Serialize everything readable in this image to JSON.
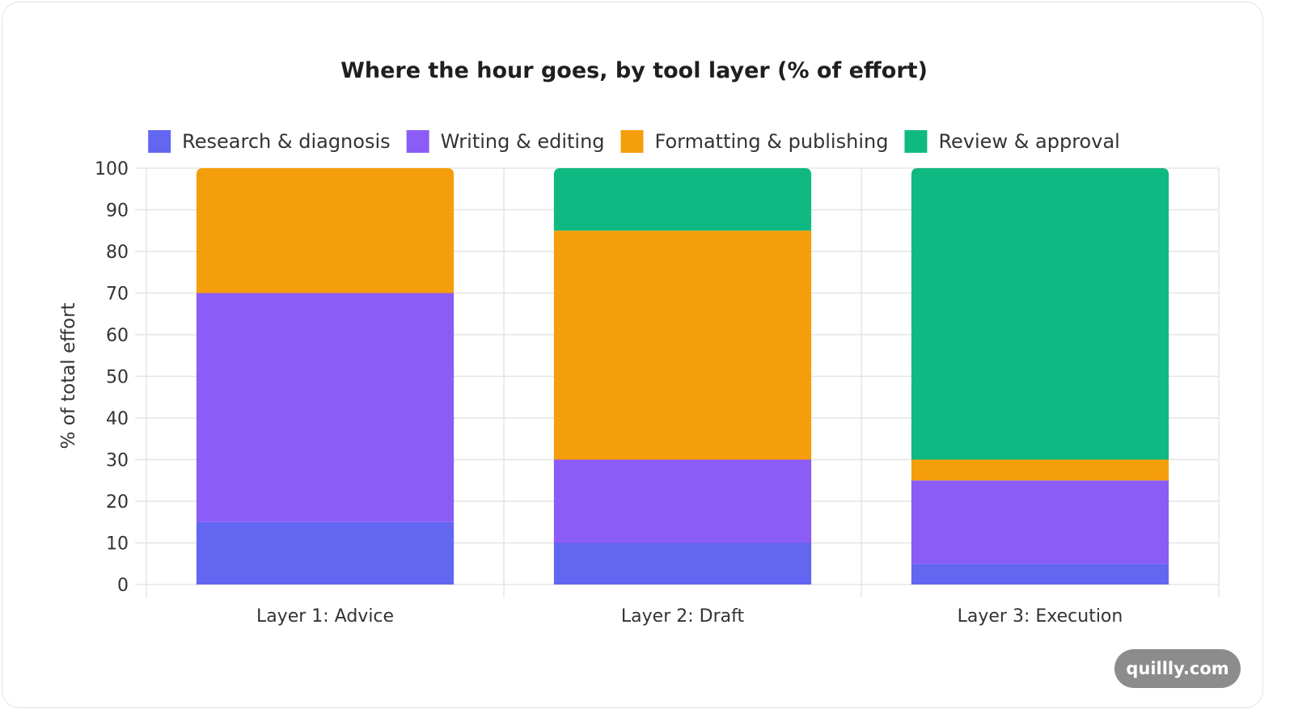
{
  "watermark": "quillly.com",
  "chart_data": {
    "type": "bar",
    "stacked": true,
    "title": "Where the hour goes, by tool layer (% of effort)",
    "xlabel": "",
    "ylabel": "% of total effort",
    "ylim": [
      0,
      100
    ],
    "yticks": [
      0,
      10,
      20,
      30,
      40,
      50,
      60,
      70,
      80,
      90,
      100
    ],
    "grid": true,
    "legend_position": "top",
    "categories": [
      "Layer 1: Advice",
      "Layer 2: Draft",
      "Layer 3: Execution"
    ],
    "series": [
      {
        "name": "Research & diagnosis",
        "color": "#6366f1",
        "values": [
          15,
          10,
          5
        ]
      },
      {
        "name": "Writing & editing",
        "color": "#8b5cf6",
        "values": [
          55,
          20,
          20
        ]
      },
      {
        "name": "Formatting & publishing",
        "color": "#f59e0b",
        "values": [
          30,
          55,
          5
        ]
      },
      {
        "name": "Review & approval",
        "color": "#10b981",
        "values": [
          0,
          15,
          70
        ]
      }
    ]
  }
}
